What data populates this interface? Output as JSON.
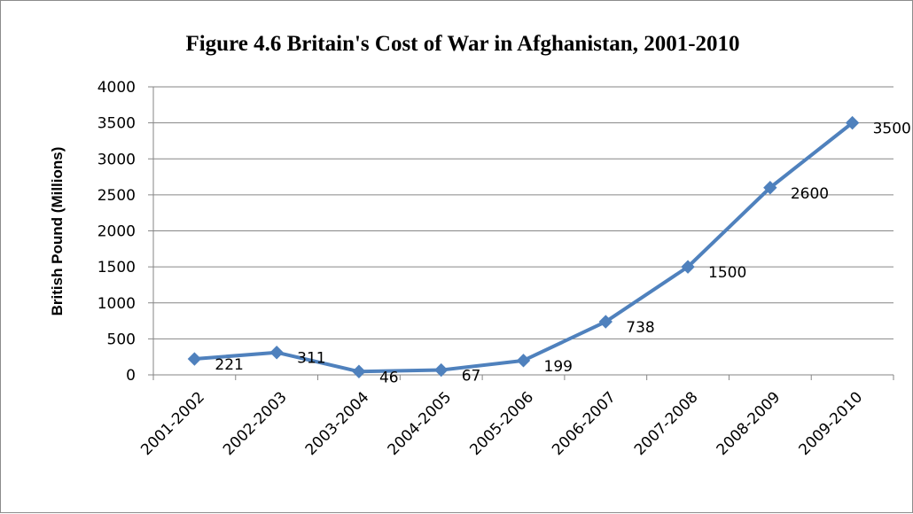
{
  "chart_data": {
    "type": "line",
    "title": "Figure 4.6 Britain's Cost of War in Afghanistan, 2001-2010",
    "xlabel": "",
    "ylabel": "British Pound (Millions)",
    "categories": [
      "2001-2002",
      "2002-2003",
      "2003-2004",
      "2004-2005",
      "2005-2006",
      "2006-2007",
      "2007-2008",
      "2008-2009",
      "2009-2010"
    ],
    "series": [
      {
        "values": [
          221,
          311,
          46,
          67,
          199,
          738,
          1500,
          2600,
          3500
        ],
        "color": "#4f81bd",
        "marker": "diamond",
        "data_labels": [
          "221",
          "311",
          "46",
          "67",
          "199",
          "738",
          "1500",
          "2600",
          "3500"
        ]
      }
    ],
    "ylim": [
      0,
      4000
    ],
    "yticks": [
      "0",
      "500",
      "1000",
      "1500",
      "2000",
      "2500",
      "3000",
      "3500",
      "4000"
    ],
    "grid": "horizontal",
    "legend": "none",
    "colors": {
      "line": "#4f81bd",
      "grid": "#868686",
      "axis": "#868686",
      "frame": "#8c8c8c"
    }
  }
}
